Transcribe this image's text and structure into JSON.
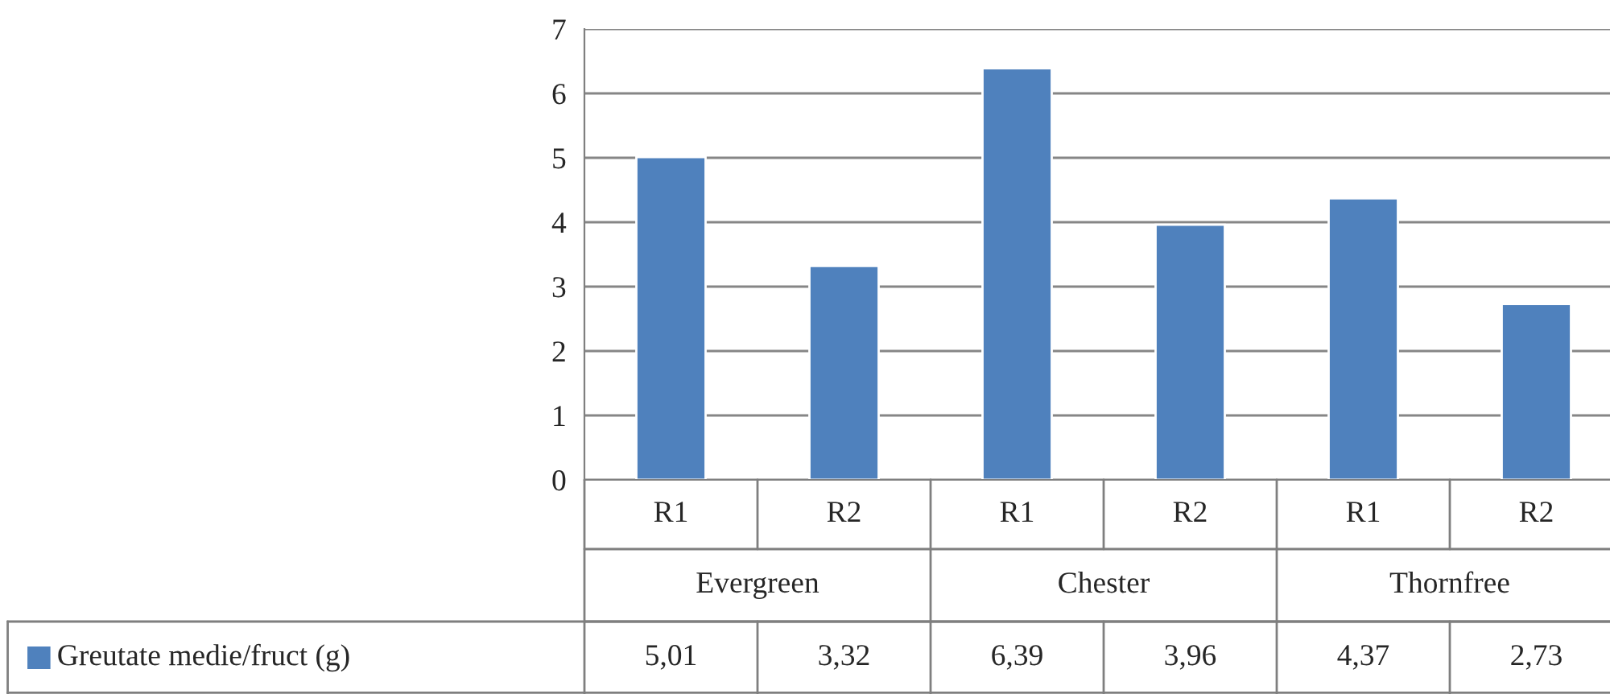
{
  "chart_data": {
    "type": "bar",
    "categories": [
      "R1",
      "R2",
      "R1",
      "R2",
      "R1",
      "R2"
    ],
    "series": [
      {
        "name": "Greutate medie/fruct (g)",
        "color": "#4f81bd",
        "values": [
          5.01,
          3.32,
          6.39,
          3.96,
          4.37,
          2.73
        ],
        "value_labels": [
          "5,01",
          "3,32",
          "6,39",
          "3,96",
          "4,37",
          "2,73"
        ]
      }
    ],
    "annotations": [
      "Evergreen",
      "Chester",
      "Thornfree"
    ],
    "ylim": [
      0,
      7
    ],
    "yticks": [
      0,
      1,
      2,
      3,
      4,
      5,
      6,
      7
    ],
    "grid": "y",
    "legend": "bottom"
  }
}
